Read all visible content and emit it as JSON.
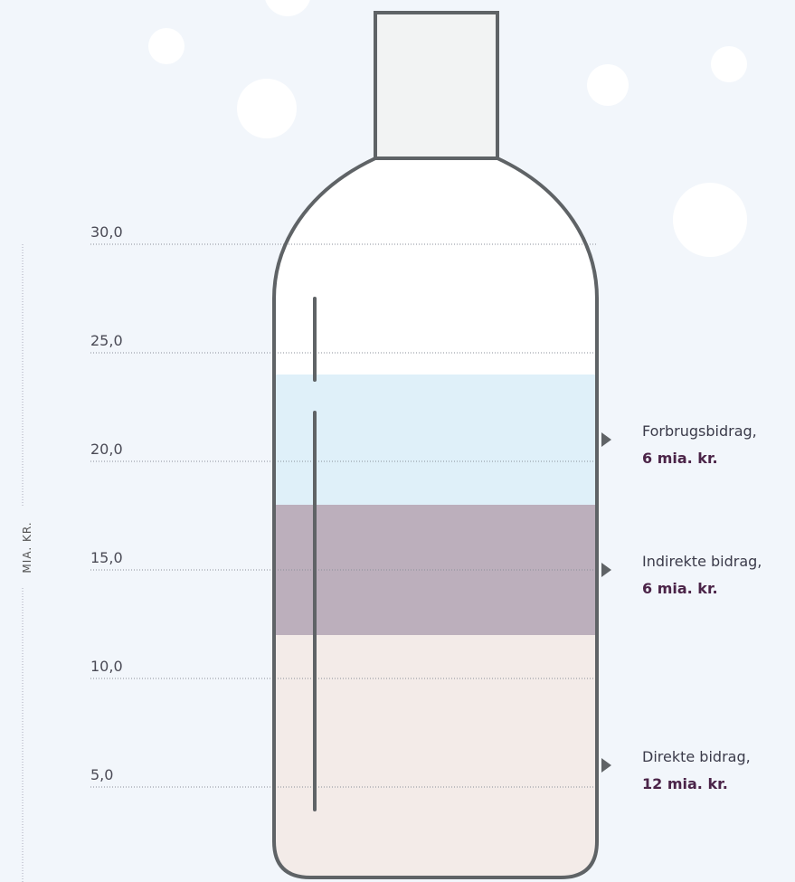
{
  "chart_data": {
    "type": "stacked-bottle",
    "y_label": "MIA. KR.",
    "ylim": [
      0,
      30
    ],
    "yticks": [
      {
        "value": 5,
        "label": "5,0"
      },
      {
        "value": 10,
        "label": "10,0"
      },
      {
        "value": 15,
        "label": "15,0"
      },
      {
        "value": 20,
        "label": "20,0"
      },
      {
        "value": 25,
        "label": "25,0"
      },
      {
        "value": 30,
        "label": "30,0"
      }
    ],
    "grid": true,
    "series": [
      {
        "name": "Direkte bidrag,",
        "color": "#f3ebe8",
        "values": [
          12
        ],
        "value_labels": [
          "12 mia. kr."
        ]
      },
      {
        "name": "Indirekte bidrag,",
        "color": "#bcafbc",
        "values": [
          6
        ],
        "value_labels": [
          "6 mia. kr."
        ]
      },
      {
        "name": "Forbrugsbidrag,",
        "color": "#dff0f9",
        "values": [
          6
        ],
        "value_labels": [
          "6 mia. kr."
        ]
      }
    ]
  }
}
